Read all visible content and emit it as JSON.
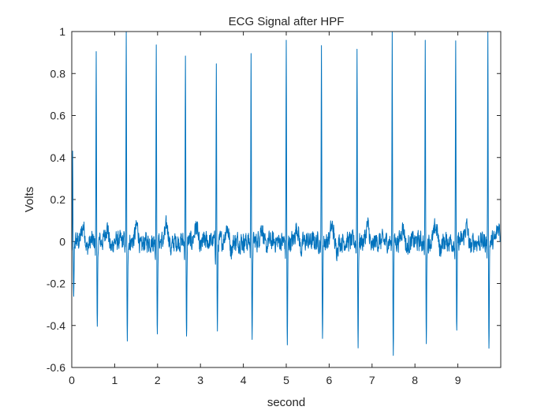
{
  "chart_data": {
    "type": "line",
    "title": "ECG Signal after HPF",
    "xlabel": "second",
    "ylabel": "Volts",
    "xlim": [
      0,
      10
    ],
    "ylim": [
      -0.6,
      1
    ],
    "xticks": [
      0,
      1,
      2,
      3,
      4,
      5,
      6,
      7,
      8,
      9
    ],
    "yticks": [
      -0.6,
      -0.4,
      -0.2,
      0,
      0.2,
      0.4,
      0.6,
      0.8,
      1
    ],
    "grid": false,
    "legend": "none",
    "color": "#0072BD",
    "sample_rate_hz": 200,
    "baseline_noise_amplitude": 0.04,
    "beats": [
      {
        "t": 0.02,
        "r": 0.4,
        "s": -0.3
      },
      {
        "t": 0.57,
        "r": 0.95,
        "s": -0.46
      },
      {
        "t": 1.27,
        "r": 1.0,
        "s": -0.51
      },
      {
        "t": 1.97,
        "r": 0.98,
        "s": -0.47
      },
      {
        "t": 2.65,
        "r": 0.92,
        "s": -0.49
      },
      {
        "t": 3.37,
        "r": 0.84,
        "s": -0.44
      },
      {
        "t": 4.18,
        "r": 0.93,
        "s": -0.5
      },
      {
        "t": 5.0,
        "r": 0.98,
        "s": -0.49
      },
      {
        "t": 5.82,
        "r": 0.97,
        "s": -0.46
      },
      {
        "t": 6.65,
        "r": 0.93,
        "s": -0.48
      },
      {
        "t": 7.47,
        "r": 1.0,
        "s": -0.51
      },
      {
        "t": 8.24,
        "r": 0.95,
        "s": -0.45
      },
      {
        "t": 8.95,
        "r": 0.96,
        "s": -0.45
      },
      {
        "t": 9.7,
        "r": 0.99,
        "s": -0.48
      }
    ]
  }
}
